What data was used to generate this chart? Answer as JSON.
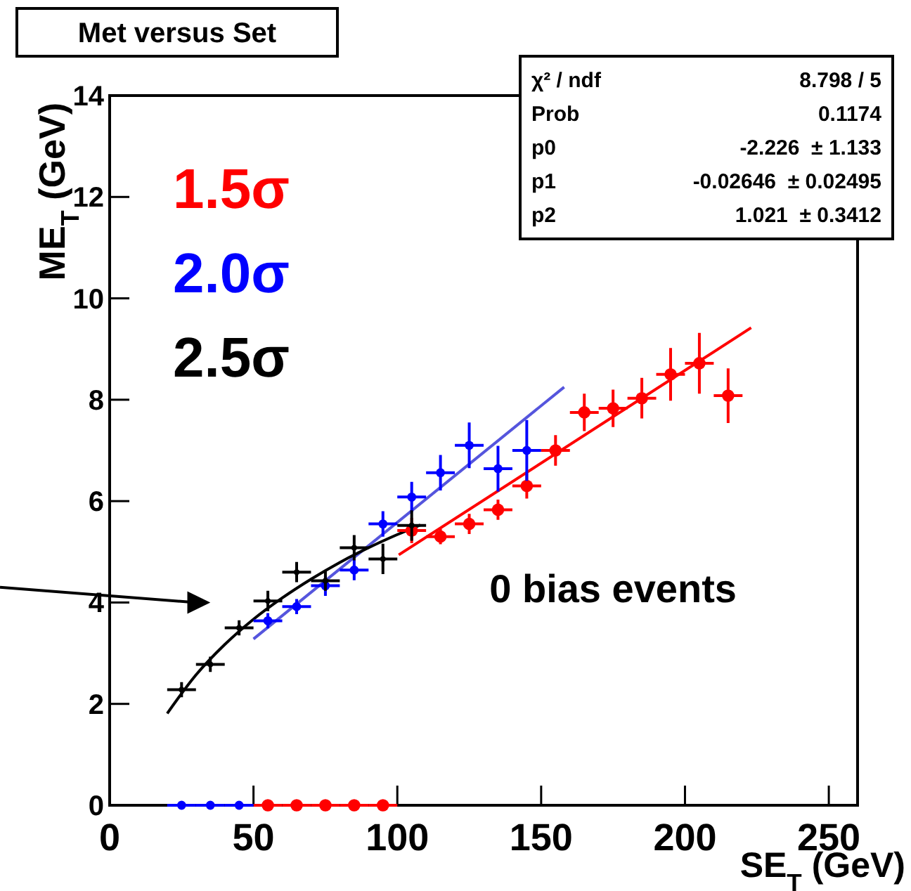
{
  "chart_data": {
    "type": "scatter",
    "title": "Met versus Set",
    "xlabel": "SE$_{T}$ (GeV)",
    "ylabel": "ME$_{T}$ (GeV)",
    "xlim": [
      0,
      260
    ],
    "ylim": [
      0,
      14
    ],
    "xticks": [
      0,
      50,
      100,
      150,
      200,
      250
    ],
    "yticks": [
      0,
      2,
      4,
      6,
      8,
      10,
      12,
      14
    ],
    "grid": false,
    "series": [
      {
        "name": "1.5σ",
        "color": "#ff0000",
        "x": [
          55,
          65,
          75,
          85,
          95,
          105,
          115,
          125,
          135,
          145,
          155,
          165,
          175,
          185,
          195,
          205,
          215
        ],
        "values": [
          0,
          0,
          0,
          0,
          0,
          5.42,
          5.3,
          5.55,
          5.83,
          6.3,
          7.0,
          7.75,
          7.83,
          8.03,
          8.5,
          8.72,
          8.08
        ],
        "errors": [
          0,
          0,
          0,
          0,
          0,
          0.25,
          0.15,
          0.2,
          0.2,
          0.25,
          0.3,
          0.37,
          0.37,
          0.4,
          0.52,
          0.6,
          0.54
        ],
        "xerrors": [
          5,
          5,
          5,
          5,
          5,
          5,
          5,
          5,
          5,
          5,
          5,
          5,
          5,
          5,
          5,
          5,
          5
        ]
      },
      {
        "name": "2.0σ",
        "color": "#0000ff",
        "x": [
          25,
          35,
          45,
          55,
          65,
          75,
          85,
          95,
          105,
          115,
          125,
          135,
          145
        ],
        "values": [
          0,
          0,
          0,
          3.64,
          3.92,
          4.33,
          4.64,
          5.55,
          6.08,
          6.56,
          7.1,
          6.64,
          7.0
        ],
        "errors": [
          0,
          0,
          0,
          0.15,
          0.15,
          0.2,
          0.2,
          0.25,
          0.3,
          0.35,
          0.45,
          0.45,
          0.6
        ],
        "xerrors": [
          5,
          5,
          5,
          5,
          5,
          5,
          5,
          5,
          5,
          5,
          5,
          5,
          5
        ]
      },
      {
        "name": "2.5σ",
        "color": "#000000",
        "x": [
          25,
          35,
          45,
          55,
          65,
          75,
          85,
          95,
          105
        ],
        "values": [
          2.28,
          2.78,
          3.5,
          4.03,
          4.6,
          4.43,
          5.08,
          4.86,
          5.52
        ],
        "errors": [
          0.15,
          0.15,
          0.15,
          0.2,
          0.2,
          0.2,
          0.25,
          0.3,
          0.3
        ],
        "xerrors": [
          5,
          5,
          5,
          5,
          5,
          5,
          5,
          5,
          5
        ]
      },
      {
        "type": "line",
        "color": "#ff0000",
        "x": [
          100.5,
          223
        ],
        "values": [
          4.94,
          9.42
        ]
      },
      {
        "type": "line",
        "color": "#5555dd",
        "x": [
          50,
          158
        ],
        "values": [
          3.28,
          8.25
        ]
      },
      {
        "type": "line",
        "color": "#000000",
        "x": [
          20,
          30,
          40,
          50,
          60,
          70,
          80,
          90,
          100,
          108
        ],
        "values": [
          1.81,
          2.57,
          3.17,
          3.67,
          4.09,
          4.46,
          4.79,
          5.08,
          5.34,
          5.53
        ]
      }
    ],
    "annotations": [
      "χ² / ndf",
      "8.798 / 5",
      "Prob",
      "0.1174",
      "p0",
      "-2.226  ± 1.133",
      "p1",
      "-0.02646  ± 0.02495",
      "p2",
      "1.021  ± 0.3412",
      "0 bias events"
    ]
  }
}
